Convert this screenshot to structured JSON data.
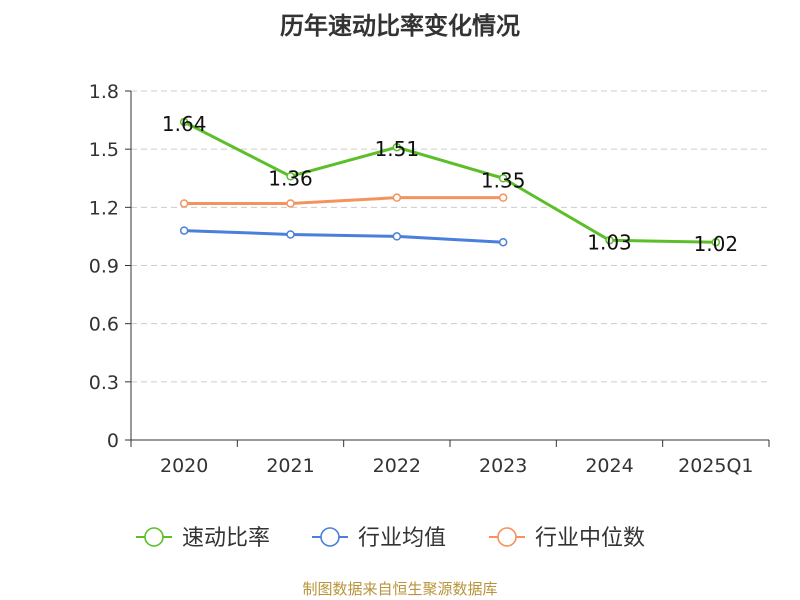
{
  "chart_data": {
    "type": "line",
    "title": "历年速动比率变化情况",
    "categories": [
      "2020",
      "2021",
      "2022",
      "2023",
      "2024",
      "2025Q1"
    ],
    "yticks": [
      "0",
      "0.3",
      "0.6",
      "0.9",
      "1.2",
      "1.5",
      "1.8"
    ],
    "ylim": [
      0,
      1.8
    ],
    "grid": true,
    "legend_position": "bottom",
    "series": [
      {
        "name": "速动比率",
        "color": "#5cbf2a",
        "values": [
          1.64,
          1.36,
          1.51,
          1.35,
          1.03,
          1.02
        ],
        "labels": [
          "1.64",
          "1.36",
          "1.51",
          "1.35",
          "1.03",
          "1.02"
        ]
      },
      {
        "name": "行业均值",
        "color": "#4a7fdb",
        "values": [
          1.08,
          1.06,
          1.05,
          1.02,
          null,
          null
        ]
      },
      {
        "name": "行业中位数",
        "color": "#f4935c",
        "values": [
          1.22,
          1.22,
          1.25,
          1.25,
          null,
          null
        ]
      }
    ]
  },
  "source": "制图数据来自恒生聚源数据库"
}
